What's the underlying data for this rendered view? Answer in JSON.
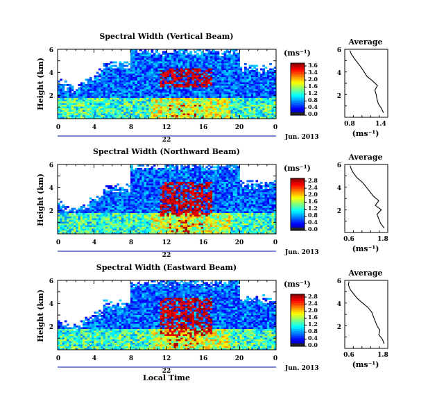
{
  "chart_data": [
    {
      "type": "heatmap",
      "title": "Spectral Width (Vertical Beam)",
      "ylabel": "Height (km)",
      "xticks": [
        "0",
        "4",
        "8",
        "12",
        "16",
        "20",
        "0"
      ],
      "yticks": [
        "6",
        "4",
        "2"
      ],
      "date_label": "22",
      "month_label": "Jun. 2013",
      "xlim": [
        0,
        24
      ],
      "ylim": [
        0,
        6
      ],
      "colorbar": {
        "unit": "(ms⁻¹)",
        "labels": [
          "3.6",
          "3.4",
          "2.0",
          "1.6",
          "1.2",
          "0.8",
          "0.4",
          "0.0"
        ]
      },
      "average": {
        "title": "Average",
        "xlabel": "(ms⁻¹)",
        "xticks": [
          "0.8",
          "1.4"
        ],
        "yticks": [
          "6",
          "4",
          "2"
        ],
        "xlim": [
          0.6,
          1.6
        ],
        "height": [
          0.4,
          0.8,
          1.2,
          1.6,
          2.0,
          2.4,
          2.8,
          3.2,
          3.6,
          4.0,
          4.4,
          4.8,
          5.2,
          5.6,
          5.9
        ],
        "width": [
          1.5,
          1.45,
          1.38,
          1.35,
          1.33,
          1.3,
          1.36,
          1.25,
          1.12,
          1.05,
          0.98,
          0.9,
          0.82,
          0.75,
          0.72
        ]
      }
    },
    {
      "type": "heatmap",
      "title": "Spectral Width (Northward Beam)",
      "ylabel": "Height (km)",
      "xticks": [
        "0",
        "4",
        "8",
        "12",
        "16",
        "20",
        "0"
      ],
      "yticks": [
        "6",
        "4",
        "2"
      ],
      "date_label": "22",
      "month_label": "Jun. 2013",
      "xlim": [
        0,
        24
      ],
      "ylim": [
        0,
        6
      ],
      "colorbar": {
        "unit": "(ms⁻¹)",
        "labels": [
          "2.8",
          "2.4",
          "2.0",
          "1.6",
          "1.2",
          "0.8",
          "0.4",
          "0.0"
        ]
      },
      "average": {
        "title": "Average",
        "xlabel": "(ms⁻¹)",
        "xticks": [
          "0.6",
          "1.8"
        ],
        "yticks": [
          "6",
          "4",
          "2"
        ],
        "xlim": [
          0.6,
          1.8
        ],
        "height": [
          0.4,
          0.8,
          1.2,
          1.6,
          2.0,
          2.4,
          2.8,
          3.2,
          3.6,
          4.0,
          4.4,
          4.8,
          5.2,
          5.6,
          5.9
        ],
        "width": [
          1.7,
          1.6,
          1.55,
          1.5,
          1.62,
          1.45,
          1.55,
          1.4,
          1.3,
          1.2,
          1.1,
          0.95,
          0.85,
          0.78,
          0.75
        ]
      }
    },
    {
      "type": "heatmap",
      "title": "Spectral Width (Eastward Beam)",
      "ylabel": "Height (km)",
      "xlabel": "Local Time",
      "xticks": [
        "0",
        "4",
        "8",
        "12",
        "16",
        "20",
        "0"
      ],
      "yticks": [
        "6",
        "4",
        "2"
      ],
      "date_label": "22",
      "month_label": "Jun. 2013",
      "xlim": [
        0,
        24
      ],
      "ylim": [
        0,
        6
      ],
      "colorbar": {
        "unit": "(ms⁻¹)",
        "labels": [
          "2.8",
          "2.4",
          "2.0",
          "1.6",
          "1.2",
          "0.8",
          "0.4",
          "0.0"
        ]
      },
      "average": {
        "title": "Average",
        "xlabel": "(ms⁻¹)",
        "xticks": [
          "0.6",
          "1.8"
        ],
        "yticks": [
          "6",
          "4",
          "2"
        ],
        "xlim": [
          0.6,
          1.8
        ],
        "height": [
          0.4,
          0.8,
          1.2,
          1.6,
          2.0,
          2.4,
          2.8,
          3.2,
          3.6,
          4.0,
          4.4,
          4.8,
          5.2,
          5.6,
          5.9
        ],
        "width": [
          1.7,
          1.65,
          1.55,
          1.58,
          1.5,
          1.45,
          1.4,
          1.35,
          1.25,
          1.1,
          0.95,
          0.85,
          0.75,
          0.7,
          0.72
        ]
      }
    }
  ]
}
